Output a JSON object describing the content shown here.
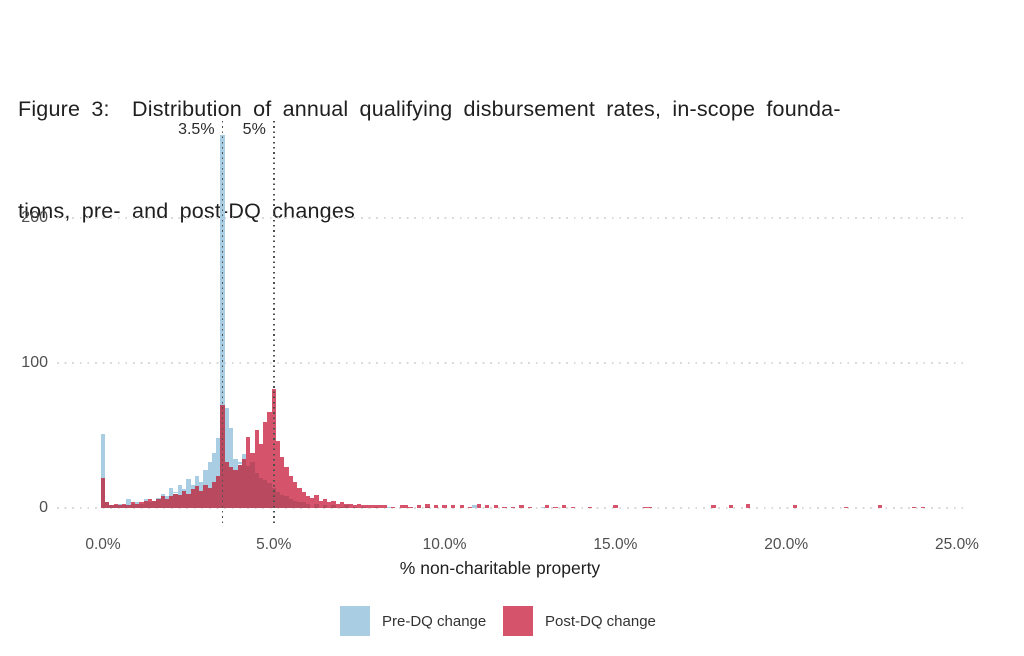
{
  "figure": {
    "caption_line1": "Figure 3:  Distribution of annual qualifying disbursement rates, in-scope founda-",
    "caption_line2": "tions, pre- and post-DQ changes"
  },
  "chart_data": {
    "type": "histogram",
    "title": "Distribution of annual qualifying disbursement rates, in-scope foundations, pre- and post-DQ changes",
    "xlabel": "% non-charitable property",
    "ylabel": "",
    "x_tick_labels": [
      "0.0%",
      "5.0%",
      "10.0%",
      "15.0%",
      "20.0%",
      "25.0%"
    ],
    "x_tick_values": [
      0,
      5,
      10,
      15,
      20,
      25
    ],
    "y_tick_labels": [
      "0",
      "100",
      "200"
    ],
    "y_tick_values": [
      0,
      100,
      200
    ],
    "xlim": [
      -1.35,
      25.15
    ],
    "ylim": [
      0,
      270
    ],
    "bin_width_pct": 0.125,
    "grid": "dotted horizontal gridlines at y ticks",
    "legend_position": "bottom center",
    "reference_lines": [
      {
        "label": "3.5%",
        "x": 3.5
      },
      {
        "label": "5%",
        "x": 5.0
      }
    ],
    "colors": {
      "pre": "#a9cde2",
      "post": "#d5536b",
      "overlap": "#b8495e",
      "grid": "#dadada",
      "refline": "#4f4f4f",
      "axis_text": "#4f4f4f"
    },
    "series": [
      {
        "name": "Pre-DQ change",
        "color": "#a9cde2",
        "bins": [
          [
            0,
            51
          ],
          [
            0.125,
            4
          ],
          [
            0.25,
            2
          ],
          [
            0.375,
            2
          ],
          [
            0.5,
            3
          ],
          [
            0.625,
            2
          ],
          [
            0.75,
            6
          ],
          [
            0.875,
            3
          ],
          [
            1,
            4
          ],
          [
            1.125,
            3
          ],
          [
            1.25,
            6
          ],
          [
            1.375,
            4
          ],
          [
            1.5,
            5
          ],
          [
            1.625,
            7
          ],
          [
            1.75,
            10
          ],
          [
            1.875,
            8
          ],
          [
            2,
            14
          ],
          [
            2.125,
            11
          ],
          [
            2.25,
            16
          ],
          [
            2.375,
            13
          ],
          [
            2.5,
            20
          ],
          [
            2.625,
            16
          ],
          [
            2.75,
            22
          ],
          [
            2.875,
            18
          ],
          [
            3,
            26
          ],
          [
            3.125,
            32
          ],
          [
            3.25,
            38
          ],
          [
            3.375,
            48
          ],
          [
            3.5,
            257
          ],
          [
            3.625,
            69
          ],
          [
            3.75,
            55
          ],
          [
            3.875,
            34
          ],
          [
            4,
            32
          ],
          [
            4.125,
            37
          ],
          [
            4.25,
            29
          ],
          [
            4.375,
            32
          ],
          [
            4.5,
            24
          ],
          [
            4.625,
            21
          ],
          [
            4.75,
            19
          ],
          [
            4.875,
            17
          ],
          [
            5,
            14
          ],
          [
            5.125,
            11
          ],
          [
            5.25,
            9
          ],
          [
            5.375,
            8
          ],
          [
            5.5,
            6
          ],
          [
            5.625,
            5
          ],
          [
            5.75,
            4
          ],
          [
            5.875,
            4
          ],
          [
            6,
            3
          ],
          [
            6.25,
            3
          ],
          [
            6.5,
            2
          ],
          [
            6.75,
            2
          ],
          [
            7,
            1
          ],
          [
            7.125,
            2
          ],
          [
            7.375,
            1
          ],
          [
            7.625,
            1
          ],
          [
            8,
            1
          ],
          [
            8.375,
            1
          ],
          [
            9.5,
            1
          ],
          [
            10.875,
            2
          ],
          [
            12.875,
            1
          ]
        ]
      },
      {
        "name": "Post-DQ change",
        "color": "#d5536b",
        "bins": [
          [
            0,
            21
          ],
          [
            0.125,
            4
          ],
          [
            0.25,
            2
          ],
          [
            0.375,
            3
          ],
          [
            0.5,
            2
          ],
          [
            0.625,
            3
          ],
          [
            0.75,
            2
          ],
          [
            0.875,
            4
          ],
          [
            1,
            3
          ],
          [
            1.125,
            4
          ],
          [
            1.25,
            5
          ],
          [
            1.375,
            6
          ],
          [
            1.5,
            5
          ],
          [
            1.625,
            6
          ],
          [
            1.75,
            8
          ],
          [
            1.875,
            6
          ],
          [
            2,
            8
          ],
          [
            2.125,
            10
          ],
          [
            2.25,
            9
          ],
          [
            2.375,
            12
          ],
          [
            2.5,
            10
          ],
          [
            2.625,
            13
          ],
          [
            2.75,
            15
          ],
          [
            2.875,
            12
          ],
          [
            3,
            16
          ],
          [
            3.125,
            14
          ],
          [
            3.25,
            18
          ],
          [
            3.375,
            22
          ],
          [
            3.5,
            71
          ],
          [
            3.625,
            32
          ],
          [
            3.75,
            28
          ],
          [
            3.875,
            26
          ],
          [
            4,
            30
          ],
          [
            4.125,
            34
          ],
          [
            4.25,
            49
          ],
          [
            4.375,
            38
          ],
          [
            4.5,
            54
          ],
          [
            4.625,
            44
          ],
          [
            4.75,
            59
          ],
          [
            4.875,
            66
          ],
          [
            5,
            82
          ],
          [
            5.125,
            46
          ],
          [
            5.25,
            35
          ],
          [
            5.375,
            28
          ],
          [
            5.5,
            22
          ],
          [
            5.625,
            18
          ],
          [
            5.75,
            14
          ],
          [
            5.875,
            11
          ],
          [
            6,
            8
          ],
          [
            6.125,
            7
          ],
          [
            6.25,
            9
          ],
          [
            6.375,
            5
          ],
          [
            6.5,
            6
          ],
          [
            6.625,
            4
          ],
          [
            6.75,
            5
          ],
          [
            6.875,
            3
          ],
          [
            7,
            4
          ],
          [
            7.125,
            3
          ],
          [
            7.25,
            3
          ],
          [
            7.375,
            2
          ],
          [
            7.5,
            3
          ],
          [
            7.625,
            2
          ],
          [
            7.75,
            2
          ],
          [
            7.875,
            2
          ],
          [
            8,
            2
          ],
          [
            8.125,
            2
          ],
          [
            8.25,
            2
          ],
          [
            8.5,
            1
          ],
          [
            8.75,
            2
          ],
          [
            8.875,
            2
          ],
          [
            9,
            1
          ],
          [
            9.25,
            2
          ],
          [
            9.5,
            3
          ],
          [
            9.75,
            2
          ],
          [
            10,
            2
          ],
          [
            10.25,
            2
          ],
          [
            10.5,
            2
          ],
          [
            10.75,
            1
          ],
          [
            11,
            3
          ],
          [
            11.25,
            2
          ],
          [
            11.5,
            2
          ],
          [
            11.75,
            1
          ],
          [
            12,
            1
          ],
          [
            12.25,
            2
          ],
          [
            12.5,
            1
          ],
          [
            13,
            2
          ],
          [
            13.25,
            1
          ],
          [
            13.5,
            2
          ],
          [
            13.75,
            1
          ],
          [
            14.25,
            1
          ],
          [
            15,
            2
          ],
          [
            15.875,
            1
          ],
          [
            16,
            1
          ],
          [
            17.875,
            2
          ],
          [
            18.375,
            2
          ],
          [
            18.875,
            3
          ],
          [
            20.25,
            2
          ],
          [
            21.75,
            1
          ],
          [
            22.75,
            2
          ],
          [
            23.75,
            1
          ],
          [
            24,
            1
          ]
        ]
      }
    ]
  }
}
